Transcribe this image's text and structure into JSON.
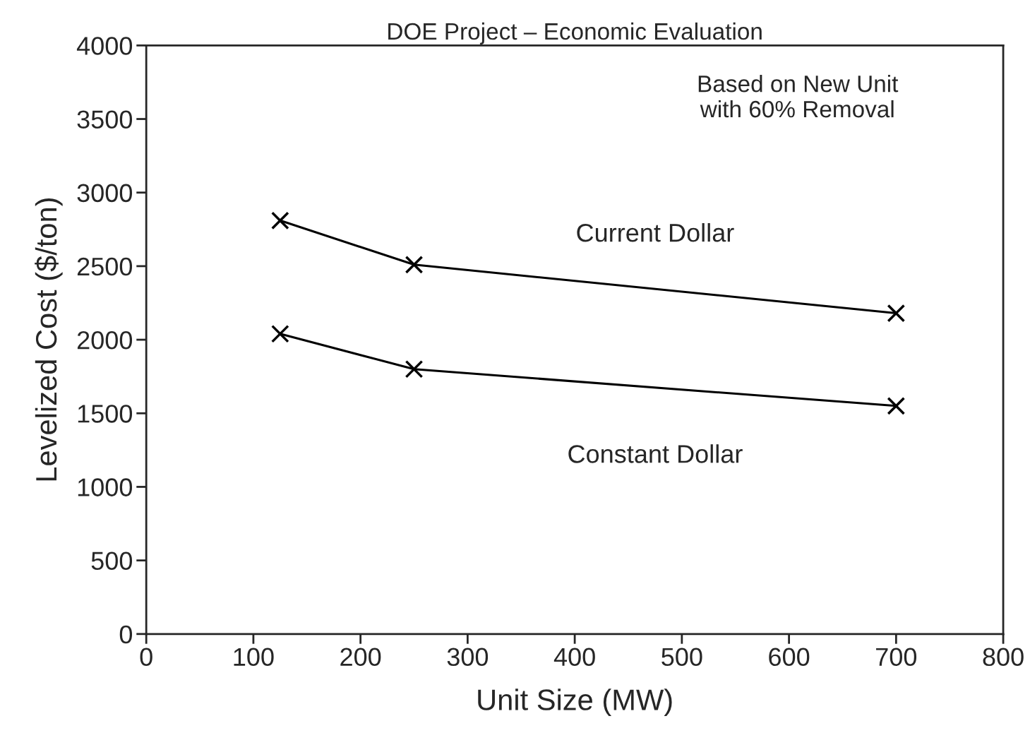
{
  "chart_data": {
    "type": "line",
    "title": "DOE Project – Economic Evaluation",
    "xlabel": "Unit Size (MW)",
    "ylabel": "Levelized Cost ($/ton)",
    "x": [
      125,
      250,
      700
    ],
    "series": [
      {
        "name": "Current Dollar",
        "color": "#000000",
        "marker": "cross",
        "values": [
          2810,
          2510,
          2180
        ]
      },
      {
        "name": "Constant Dollar",
        "color": "#000000",
        "marker": "cross",
        "values": [
          2040,
          1800,
          1550
        ]
      }
    ],
    "annotations": [
      "Based on New Unit\nwith 60% Removal"
    ],
    "xlim": [
      0,
      800
    ],
    "xticks": [
      0,
      100,
      200,
      300,
      400,
      500,
      600,
      700,
      800
    ],
    "ylim": [
      0,
      4000
    ],
    "yticks": [
      0,
      500,
      1000,
      1500,
      2000,
      2500,
      3000,
      3500,
      4000
    ],
    "grid": false,
    "legend": false,
    "line_style": "solid"
  }
}
